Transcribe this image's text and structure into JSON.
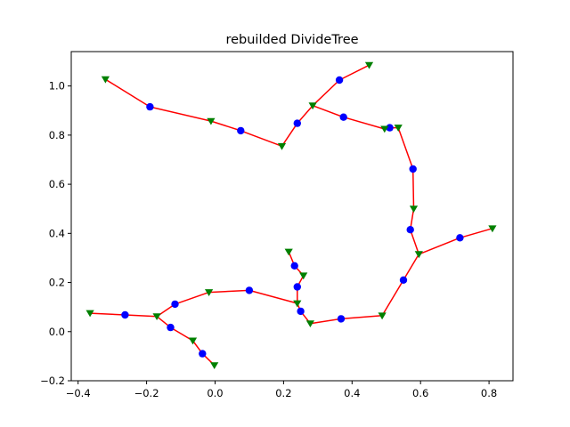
{
  "chart_data": {
    "type": "scatter",
    "title": "rebuilded DivideTree",
    "xlabel": "",
    "ylabel": "",
    "xlim": [
      -0.42,
      0.87
    ],
    "ylim": [
      -0.2,
      1.14
    ],
    "xticks": [
      -0.4,
      -0.2,
      0.0,
      0.2,
      0.4,
      0.6,
      0.8
    ],
    "xtick_labels": [
      "−0.4",
      "−0.2",
      "0.0",
      "0.2",
      "0.4",
      "0.6",
      "0.8"
    ],
    "yticks": [
      -0.2,
      0.0,
      0.2,
      0.4,
      0.6,
      0.8,
      1.0
    ],
    "ytick_labels": [
      "−0.2",
      "0.0",
      "0.2",
      "0.4",
      "0.6",
      "0.8",
      "1.0"
    ],
    "grid": false,
    "colors": {
      "edges": "#ff0000",
      "peaks": "#0000ff",
      "saddles": "#008000"
    },
    "peaks": [
      [
        -0.19,
        0.915
      ],
      [
        0.075,
        0.818
      ],
      [
        0.24,
        0.848
      ],
      [
        0.363,
        1.024
      ],
      [
        0.375,
        0.873
      ],
      [
        0.51,
        0.83
      ],
      [
        0.578,
        0.662
      ],
      [
        0.57,
        0.415
      ],
      [
        0.55,
        0.21
      ],
      [
        0.715,
        0.382
      ],
      [
        -0.263,
        0.068
      ],
      [
        -0.117,
        0.112
      ],
      [
        -0.13,
        0.017
      ],
      [
        -0.037,
        -0.09
      ],
      [
        0.1,
        0.168
      ],
      [
        0.232,
        0.268
      ],
      [
        0.24,
        0.182
      ],
      [
        0.25,
        0.083
      ],
      [
        0.368,
        0.052
      ]
    ],
    "saddles": [
      [
        -0.32,
        1.027
      ],
      [
        -0.012,
        0.857
      ],
      [
        0.195,
        0.755
      ],
      [
        0.285,
        0.92
      ],
      [
        0.45,
        1.085
      ],
      [
        0.495,
        0.825
      ],
      [
        0.535,
        0.83
      ],
      [
        0.58,
        0.5
      ],
      [
        0.595,
        0.315
      ],
      [
        0.81,
        0.42
      ],
      [
        -0.365,
        0.075
      ],
      [
        -0.17,
        0.062
      ],
      [
        -0.065,
        -0.037
      ],
      [
        -0.002,
        -0.137
      ],
      [
        -0.018,
        0.16
      ],
      [
        0.215,
        0.325
      ],
      [
        0.258,
        0.228
      ],
      [
        0.24,
        0.115
      ],
      [
        0.278,
        0.033
      ],
      [
        0.488,
        0.065
      ]
    ],
    "edges": [
      [
        [
          -0.32,
          1.027
        ],
        [
          -0.19,
          0.915
        ],
        [
          -0.012,
          0.857
        ],
        [
          0.075,
          0.818
        ],
        [
          0.195,
          0.755
        ],
        [
          0.24,
          0.848
        ],
        [
          0.285,
          0.92
        ],
        [
          0.363,
          1.024
        ],
        [
          0.45,
          1.085
        ]
      ],
      [
        [
          0.285,
          0.92
        ],
        [
          0.375,
          0.873
        ],
        [
          0.495,
          0.825
        ],
        [
          0.51,
          0.83
        ],
        [
          0.535,
          0.83
        ],
        [
          0.578,
          0.662
        ],
        [
          0.58,
          0.5
        ],
        [
          0.57,
          0.415
        ],
        [
          0.595,
          0.315
        ],
        [
          0.715,
          0.382
        ],
        [
          0.81,
          0.42
        ]
      ],
      [
        [
          0.595,
          0.315
        ],
        [
          0.55,
          0.21
        ],
        [
          0.488,
          0.065
        ],
        [
          0.368,
          0.052
        ],
        [
          0.278,
          0.033
        ],
        [
          0.25,
          0.083
        ],
        [
          0.24,
          0.115
        ],
        [
          0.24,
          0.182
        ],
        [
          0.258,
          0.228
        ],
        [
          0.232,
          0.268
        ],
        [
          0.215,
          0.325
        ]
      ],
      [
        [
          0.24,
          0.115
        ],
        [
          0.1,
          0.168
        ],
        [
          -0.018,
          0.16
        ],
        [
          -0.117,
          0.112
        ],
        [
          -0.17,
          0.062
        ],
        [
          -0.263,
          0.068
        ],
        [
          -0.365,
          0.075
        ]
      ],
      [
        [
          -0.17,
          0.062
        ],
        [
          -0.13,
          0.017
        ],
        [
          -0.065,
          -0.037
        ],
        [
          -0.037,
          -0.09
        ],
        [
          -0.002,
          -0.137
        ]
      ]
    ]
  }
}
